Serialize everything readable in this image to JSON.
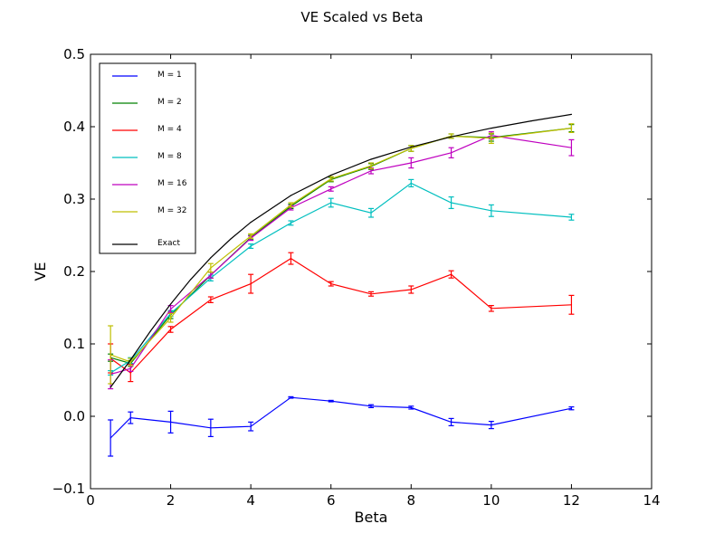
{
  "chart_data": {
    "type": "line",
    "title": "VE Scaled vs Beta",
    "xlabel": "Beta",
    "ylabel": "VE",
    "xlim": [
      0,
      14
    ],
    "ylim": [
      -0.1,
      0.5
    ],
    "xticks": [
      "0",
      "2",
      "4",
      "6",
      "8",
      "10",
      "12",
      "14"
    ],
    "yticks": [
      "−0.1",
      "0.0",
      "0.1",
      "0.2",
      "0.3",
      "0.4",
      "0.5"
    ],
    "grid": false,
    "legend_position": "top-left",
    "x": [
      0.5,
      1,
      2,
      3,
      4,
      5,
      6,
      7,
      8,
      9,
      10,
      12
    ],
    "series": [
      {
        "name": "M = 1",
        "color": "#0000ff",
        "values": [
          -0.03,
          -0.002,
          -0.008,
          -0.016,
          -0.014,
          0.026,
          0.021,
          0.014,
          0.012,
          -0.008,
          -0.012,
          0.011
        ],
        "errors": [
          0.025,
          0.008,
          0.015,
          0.012,
          0.006,
          0.001,
          0.001,
          0.002,
          0.002,
          0.005,
          0.005,
          0.002
        ]
      },
      {
        "name": "M = 2",
        "color": "#008000",
        "values": [
          0.081,
          0.073,
          0.14,
          0.195,
          0.247,
          0.29,
          0.327,
          0.345,
          0.37,
          0.387,
          0.385,
          0.398
        ],
        "errors": [
          0.005,
          0.004,
          0.005,
          0.004,
          0.003,
          0.003,
          0.003,
          0.004,
          0.004,
          0.003,
          0.005,
          0.005
        ]
      },
      {
        "name": "M = 4",
        "color": "#ff0000",
        "values": [
          0.08,
          0.06,
          0.12,
          0.161,
          0.183,
          0.218,
          0.183,
          0.169,
          0.175,
          0.196,
          0.149,
          0.154
        ],
        "errors": [
          0.02,
          0.012,
          0.004,
          0.004,
          0.013,
          0.008,
          0.003,
          0.003,
          0.005,
          0.005,
          0.004,
          0.013
        ]
      },
      {
        "name": "M = 8",
        "color": "#00bfbf",
        "values": [
          0.06,
          0.077,
          0.142,
          0.191,
          0.235,
          0.267,
          0.295,
          0.281,
          0.322,
          0.295,
          0.284,
          0.275
        ],
        "errors": [
          0.003,
          0.004,
          0.004,
          0.004,
          0.003,
          0.003,
          0.006,
          0.006,
          0.005,
          0.008,
          0.008,
          0.004
        ]
      },
      {
        "name": "M = 16",
        "color": "#bf00bf",
        "values": [
          0.058,
          0.066,
          0.148,
          0.195,
          0.246,
          0.288,
          0.314,
          0.339,
          0.35,
          0.364,
          0.388,
          0.371
        ],
        "errors": [
          0.02,
          0.004,
          0.005,
          0.004,
          0.003,
          0.003,
          0.003,
          0.004,
          0.007,
          0.007,
          0.005,
          0.011
        ]
      },
      {
        "name": "M = 32",
        "color": "#bfbf00",
        "values": [
          0.085,
          0.075,
          0.136,
          0.205,
          0.249,
          0.292,
          0.328,
          0.346,
          0.37,
          0.387,
          0.384,
          0.398
        ],
        "errors": [
          0.04,
          0.005,
          0.006,
          0.006,
          0.003,
          0.003,
          0.003,
          0.004,
          0.004,
          0.003,
          0.007,
          0.006
        ]
      },
      {
        "name": "Exact",
        "color": "#000000",
        "x": [
          0.5,
          1,
          1.5,
          2,
          2.5,
          3,
          3.5,
          4,
          5,
          6,
          7,
          8,
          9,
          10,
          11,
          12
        ],
        "values": [
          0.04,
          0.078,
          0.118,
          0.155,
          0.189,
          0.219,
          0.245,
          0.268,
          0.305,
          0.333,
          0.355,
          0.372,
          0.386,
          0.398,
          0.408,
          0.417
        ]
      }
    ]
  }
}
